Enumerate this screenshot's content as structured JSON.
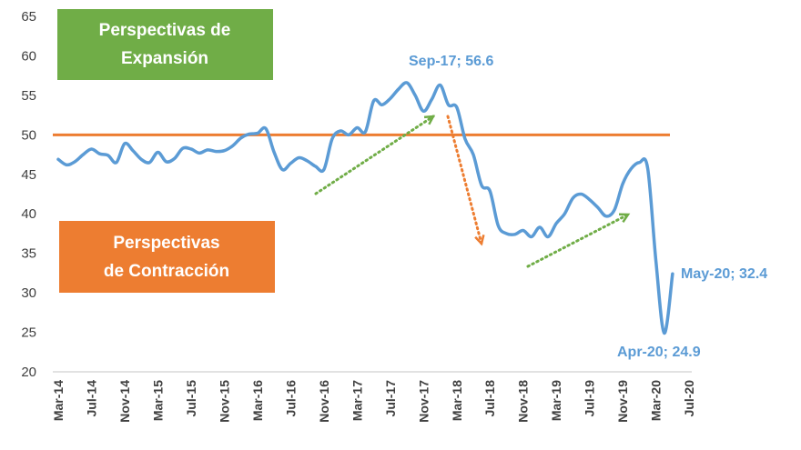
{
  "chart_data": {
    "type": "line",
    "title": "",
    "xlabel": "",
    "ylabel": "",
    "ylim": [
      20,
      65
    ],
    "yticks": [
      20,
      25,
      30,
      35,
      40,
      45,
      50,
      55,
      60,
      65
    ],
    "grid": false,
    "x_start": "Mar-14",
    "xtick_labels": [
      "Mar-14",
      "Jul-14",
      "Nov-14",
      "Mar-15",
      "Jul-15",
      "Nov-15",
      "Mar-16",
      "Jul-16",
      "Nov-16",
      "Mar-17",
      "Jul-17",
      "Nov-17",
      "Mar-18",
      "Jul-18",
      "Nov-18",
      "Mar-19",
      "Jul-19",
      "Nov-19",
      "Mar-20",
      "Jul-20"
    ],
    "series": [
      {
        "color": "#5b9bd5",
        "values": [
          46.9,
          46.2,
          46.6,
          47.5,
          48.2,
          47.6,
          47.4,
          46.5,
          48.9,
          48.0,
          46.9,
          46.5,
          47.8,
          46.6,
          47.0,
          48.3,
          48.2,
          47.7,
          48.1,
          47.9,
          48.0,
          48.6,
          49.6,
          50.1,
          50.2,
          50.8,
          47.8,
          45.6,
          46.4,
          47.1,
          46.7,
          46.0,
          45.6,
          49.5,
          50.5,
          50.0,
          50.9,
          50.4,
          54.3,
          53.8,
          54.6,
          55.8,
          56.6,
          55.0,
          53.0,
          54.5,
          56.3,
          53.8,
          53.5,
          49.5,
          47.5,
          43.6,
          42.9,
          38.5,
          37.5,
          37.4,
          37.9,
          37.1,
          38.3,
          37.1,
          38.8,
          40.0,
          42.0,
          42.5,
          41.8,
          40.8,
          39.7,
          40.5,
          43.8,
          45.7,
          46.5,
          45.8,
          34.0,
          24.9,
          32.4
        ]
      }
    ],
    "threshold": {
      "value": 50,
      "color": "#ed7d31"
    },
    "annotations": [
      {
        "text": "Sep-17; 56.6"
      },
      {
        "text": "Apr-20; 24.9"
      },
      {
        "text": "May-20; 32.4"
      }
    ],
    "zones": [
      {
        "line1": "Perspectivas de",
        "line2": "Expansión",
        "color": "#70ad47"
      },
      {
        "line1": "Perspectivas",
        "line2": "de Contracción",
        "color": "#ed7d31"
      }
    ],
    "trend_arrows": [
      {
        "color": "#70ad47",
        "direction": "up"
      },
      {
        "color": "#ed7d31",
        "direction": "down"
      },
      {
        "color": "#70ad47",
        "direction": "up"
      }
    ]
  }
}
